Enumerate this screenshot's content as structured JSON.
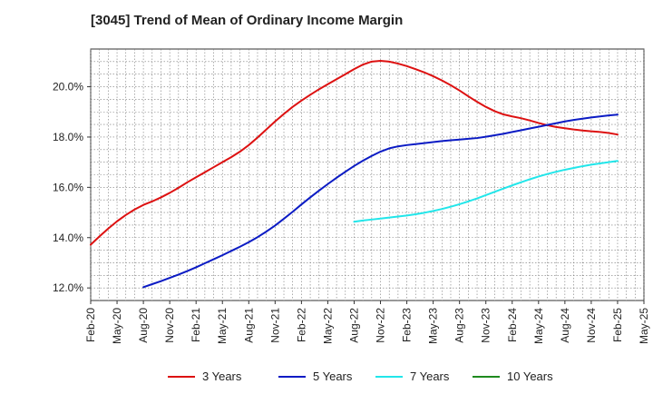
{
  "chart_data": {
    "type": "line",
    "title": "[3045]  Trend of Mean of Ordinary Income Margin",
    "xlabel": "",
    "ylabel": "",
    "x_ticks": [
      "Feb-20",
      "May-20",
      "Aug-20",
      "Nov-20",
      "Feb-21",
      "May-21",
      "Aug-21",
      "Nov-21",
      "Feb-22",
      "May-22",
      "Aug-22",
      "Nov-22",
      "Feb-23",
      "May-23",
      "Aug-23",
      "Nov-23",
      "Feb-24",
      "May-24",
      "Aug-24",
      "Nov-24",
      "Feb-25",
      "May-25"
    ],
    "y_ticks": [
      "12.0%",
      "14.0%",
      "16.0%",
      "18.0%",
      "20.0%"
    ],
    "ylim": [
      11.5,
      21.5
    ],
    "grid": true,
    "legend_position": "bottom",
    "series": [
      {
        "name": "3 Years",
        "color": "#dd1111",
        "x": [
          "Feb-20",
          "Mar-20",
          "Apr-20",
          "May-20",
          "Jun-20",
          "Jul-20",
          "Aug-20",
          "Sep-20",
          "Oct-20",
          "Nov-20",
          "Dec-20",
          "Jan-21",
          "Feb-21",
          "Mar-21",
          "Apr-21",
          "May-21",
          "Jun-21",
          "Jul-21",
          "Aug-21",
          "Sep-21",
          "Oct-21",
          "Nov-21",
          "Dec-21",
          "Jan-22",
          "Feb-22",
          "Mar-22",
          "Apr-22",
          "May-22",
          "Jun-22",
          "Jul-22",
          "Aug-22",
          "Sep-22",
          "Oct-22",
          "Nov-22",
          "Dec-22",
          "Jan-23",
          "Feb-23",
          "Mar-23",
          "Apr-23",
          "May-23",
          "Jun-23",
          "Jul-23",
          "Aug-23",
          "Sep-23",
          "Oct-23",
          "Nov-23",
          "Dec-23",
          "Jan-24",
          "Feb-24",
          "Mar-24",
          "Apr-24",
          "May-24",
          "Jun-24",
          "Jul-24",
          "Aug-24",
          "Sep-24",
          "Oct-24",
          "Nov-24",
          "Dec-24",
          "Jan-25",
          "Feb-25"
        ],
        "values": [
          13.72,
          14.05,
          14.36,
          14.65,
          14.9,
          15.12,
          15.3,
          15.44,
          15.6,
          15.78,
          15.98,
          16.2,
          16.4,
          16.6,
          16.8,
          17.0,
          17.2,
          17.42,
          17.68,
          17.98,
          18.3,
          18.62,
          18.92,
          19.2,
          19.45,
          19.68,
          19.9,
          20.1,
          20.3,
          20.5,
          20.7,
          20.88,
          21.0,
          21.03,
          21.0,
          20.92,
          20.82,
          20.7,
          20.57,
          20.42,
          20.25,
          20.06,
          19.85,
          19.62,
          19.4,
          19.2,
          19.03,
          18.9,
          18.82,
          18.75,
          18.66,
          18.56,
          18.47,
          18.4,
          18.35,
          18.3,
          18.26,
          18.23,
          18.2,
          18.16,
          18.1
        ]
      },
      {
        "name": "5 Years",
        "color": "#0b1bc4",
        "x": [
          "Aug-20",
          "Sep-20",
          "Oct-20",
          "Nov-20",
          "Dec-20",
          "Jan-21",
          "Feb-21",
          "Mar-21",
          "Apr-21",
          "May-21",
          "Jun-21",
          "Jul-21",
          "Aug-21",
          "Sep-21",
          "Oct-21",
          "Nov-21",
          "Dec-21",
          "Jan-22",
          "Feb-22",
          "Mar-22",
          "Apr-22",
          "May-22",
          "Jun-22",
          "Jul-22",
          "Aug-22",
          "Sep-22",
          "Oct-22",
          "Nov-22",
          "Dec-22",
          "Jan-23",
          "Feb-23",
          "Mar-23",
          "Apr-23",
          "May-23",
          "Jun-23",
          "Jul-23",
          "Aug-23",
          "Sep-23",
          "Oct-23",
          "Nov-23",
          "Dec-23",
          "Jan-24",
          "Feb-24",
          "Mar-24",
          "Apr-24",
          "May-24",
          "Jun-24",
          "Jul-24",
          "Aug-24",
          "Sep-24",
          "Oct-24",
          "Nov-24",
          "Dec-24",
          "Jan-25",
          "Feb-25"
        ],
        "values": [
          12.03,
          12.15,
          12.27,
          12.4,
          12.53,
          12.67,
          12.82,
          12.98,
          13.14,
          13.3,
          13.47,
          13.64,
          13.82,
          14.02,
          14.24,
          14.48,
          14.75,
          15.03,
          15.32,
          15.6,
          15.87,
          16.13,
          16.38,
          16.62,
          16.85,
          17.06,
          17.25,
          17.42,
          17.55,
          17.63,
          17.68,
          17.72,
          17.76,
          17.8,
          17.84,
          17.87,
          17.9,
          17.93,
          17.96,
          18.01,
          18.07,
          18.13,
          18.2,
          18.27,
          18.34,
          18.41,
          18.48,
          18.55,
          18.62,
          18.68,
          18.73,
          18.78,
          18.82,
          18.86,
          18.89
        ]
      },
      {
        "name": "7 Years",
        "color": "#22e6ea",
        "x": [
          "Aug-22",
          "Sep-22",
          "Oct-22",
          "Nov-22",
          "Dec-22",
          "Jan-23",
          "Feb-23",
          "Mar-23",
          "Apr-23",
          "May-23",
          "Jun-23",
          "Jul-23",
          "Aug-23",
          "Sep-23",
          "Oct-23",
          "Nov-23",
          "Dec-23",
          "Jan-24",
          "Feb-24",
          "Mar-24",
          "Apr-24",
          "May-24",
          "Jun-24",
          "Jul-24",
          "Aug-24",
          "Sep-24",
          "Oct-24",
          "Nov-24",
          "Dec-24",
          "Jan-25",
          "Feb-25"
        ],
        "values": [
          14.63,
          14.68,
          14.72,
          14.76,
          14.8,
          14.84,
          14.88,
          14.93,
          14.99,
          15.06,
          15.14,
          15.23,
          15.33,
          15.44,
          15.56,
          15.69,
          15.82,
          15.95,
          16.08,
          16.2,
          16.32,
          16.43,
          16.53,
          16.62,
          16.7,
          16.77,
          16.84,
          16.9,
          16.95,
          17.0,
          17.05
        ]
      },
      {
        "name": "10 Years",
        "color": "#1e8a1e",
        "x": [],
        "values": []
      }
    ]
  }
}
